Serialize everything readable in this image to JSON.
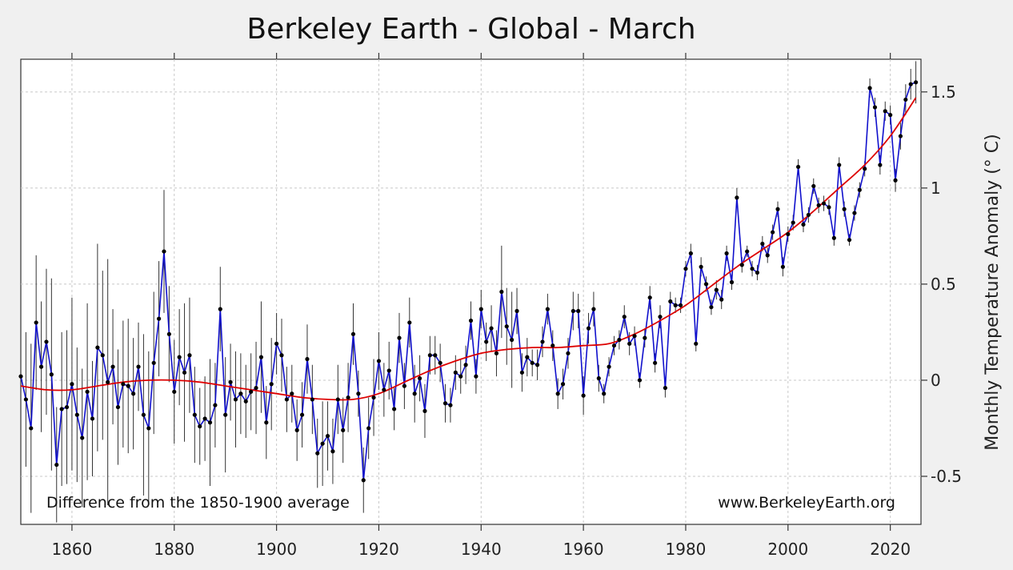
{
  "chart_data": {
    "type": "line",
    "title": "Berkeley Earth - Global - March",
    "ylabel": "Monthly Temperature Anomaly (° C)",
    "xlabel": "",
    "annotation_left": "Difference from the 1850-1900 average",
    "annotation_right": "www.BerkeleyEarth.org",
    "xlim": [
      1850,
      2026
    ],
    "ylim": [
      -0.75,
      1.67
    ],
    "x_ticks": [
      1860,
      1880,
      1900,
      1920,
      1940,
      1960,
      1980,
      2000,
      2020
    ],
    "x_tick_labels": [
      "1860",
      "1880",
      "1900",
      "1920",
      "1940",
      "1960",
      "1980",
      "2000",
      "2020"
    ],
    "y_ticks": [
      -0.5,
      0,
      0.5,
      1,
      1.5
    ],
    "y_tick_labels": [
      "-0.5",
      "0",
      "0.5",
      "1",
      "1.5"
    ],
    "grid": true,
    "colors": {
      "series": "#1010cc",
      "points": "#000000",
      "trend": "#dd0000",
      "errorbars": "#333333"
    },
    "series": [
      {
        "x_start": 1850,
        "x_end": 2025,
        "values": [
          0.02,
          -0.1,
          -0.25,
          0.3,
          0.07,
          0.2,
          0.03,
          -0.44,
          -0.15,
          -0.14,
          -0.02,
          -0.18,
          -0.3,
          -0.06,
          -0.2,
          0.17,
          0.13,
          -0.01,
          0.07,
          -0.14,
          -0.02,
          -0.03,
          -0.07,
          0.07,
          -0.18,
          -0.25,
          0.09,
          0.32,
          0.67,
          0.24,
          -0.06,
          0.12,
          0.04,
          0.13,
          -0.18,
          -0.24,
          -0.2,
          -0.22,
          -0.13,
          0.37,
          -0.18,
          -0.01,
          -0.1,
          -0.07,
          -0.11,
          -0.06,
          -0.04,
          0.12,
          -0.22,
          -0.02,
          0.19,
          0.13,
          -0.1,
          -0.07,
          -0.26,
          -0.18,
          0.11,
          -0.1,
          -0.38,
          -0.33,
          -0.29,
          -0.37,
          -0.1,
          -0.26,
          -0.09,
          0.24,
          -0.07,
          -0.52,
          -0.25,
          -0.09,
          0.1,
          -0.05,
          0.05,
          -0.15,
          0.22,
          -0.03,
          0.3,
          -0.07,
          0.01,
          -0.16,
          0.13,
          0.13,
          0.09,
          -0.12,
          -0.13,
          0.04,
          0.02,
          0.08,
          0.31,
          0.02,
          0.37,
          0.2,
          0.27,
          0.14,
          0.46,
          0.28,
          0.21,
          0.36,
          0.04,
          0.12,
          0.09,
          0.08,
          0.2,
          0.37,
          0.18,
          -0.07,
          -0.02,
          0.14,
          0.36,
          0.36,
          -0.08,
          0.27,
          0.37,
          0.01,
          -0.07,
          0.07,
          0.18,
          0.21,
          0.33,
          0.19,
          0.23,
          0.0,
          0.22,
          0.43,
          0.09,
          0.33,
          -0.04,
          0.41,
          0.39,
          0.39,
          0.58,
          0.66,
          0.19,
          0.59,
          0.5,
          0.38,
          0.47,
          0.42,
          0.66,
          0.51,
          0.95,
          0.6,
          0.67,
          0.58,
          0.56,
          0.71,
          0.65,
          0.77,
          0.89,
          0.59,
          0.76,
          0.82,
          1.11,
          0.81,
          0.86,
          1.01,
          0.91,
          0.92,
          0.9,
          0.74,
          1.12,
          0.89,
          0.73,
          0.87,
          0.99,
          1.1,
          1.52,
          1.42,
          1.12,
          1.4,
          1.38,
          1.04,
          1.27,
          1.46,
          1.54,
          1.55
        ],
        "uncertainty": [
          0.3,
          0.35,
          0.44,
          0.35,
          0.34,
          0.38,
          0.5,
          0.3,
          0.4,
          0.4,
          0.45,
          0.35,
          0.36,
          0.46,
          0.3,
          0.54,
          0.44,
          0.64,
          0.3,
          0.3,
          0.33,
          0.35,
          0.29,
          0.23,
          0.42,
          0.4,
          0.37,
          0.3,
          0.32,
          0.25,
          0.27,
          0.25,
          0.36,
          0.3,
          0.25,
          0.2,
          0.22,
          0.33,
          0.22,
          0.22,
          0.3,
          0.2,
          0.25,
          0.21,
          0.19,
          0.2,
          0.24,
          0.29,
          0.19,
          0.24,
          0.16,
          0.19,
          0.17,
          0.15,
          0.16,
          0.17,
          0.18,
          0.18,
          0.18,
          0.22,
          0.18,
          0.17,
          0.18,
          0.17,
          0.18,
          0.16,
          0.12,
          0.17,
          0.16,
          0.2,
          0.15,
          0.14,
          0.15,
          0.11,
          0.13,
          0.12,
          0.13,
          0.15,
          0.12,
          0.14,
          0.1,
          0.1,
          0.1,
          0.1,
          0.09,
          0.09,
          0.09,
          0.1,
          0.1,
          0.09,
          0.1,
          0.1,
          0.12,
          0.12,
          0.24,
          0.2,
          0.25,
          0.12,
          0.1,
          0.1,
          0.07,
          0.08,
          0.08,
          0.08,
          0.08,
          0.08,
          0.08,
          0.08,
          0.1,
          0.09,
          0.1,
          0.08,
          0.09,
          0.07,
          0.05,
          0.05,
          0.05,
          0.05,
          0.06,
          0.06,
          0.05,
          0.04,
          0.05,
          0.06,
          0.05,
          0.06,
          0.05,
          0.05,
          0.04,
          0.04,
          0.04,
          0.05,
          0.04,
          0.05,
          0.04,
          0.04,
          0.05,
          0.05,
          0.04,
          0.04,
          0.05,
          0.04,
          0.03,
          0.04,
          0.04,
          0.04,
          0.04,
          0.04,
          0.04,
          0.05,
          0.04,
          0.04,
          0.04,
          0.04,
          0.04,
          0.04,
          0.04,
          0.04,
          0.04,
          0.04,
          0.04,
          0.04,
          0.03,
          0.04,
          0.04,
          0.04,
          0.05,
          0.05,
          0.05,
          0.05,
          0.05,
          0.06,
          0.07,
          0.08,
          0.08,
          0.11
        ]
      },
      {
        "type": "smoothed-trend",
        "x": [
          1850,
          1855,
          1860,
          1865,
          1870,
          1875,
          1880,
          1885,
          1890,
          1895,
          1900,
          1905,
          1910,
          1915,
          1920,
          1925,
          1930,
          1935,
          1940,
          1945,
          1950,
          1955,
          1960,
          1965,
          1970,
          1975,
          1980,
          1985,
          1990,
          1995,
          2000,
          2005,
          2010,
          2015,
          2020,
          2025
        ],
        "values": [
          -0.03,
          -0.05,
          -0.05,
          -0.03,
          -0.01,
          0.0,
          0.0,
          -0.01,
          -0.03,
          -0.05,
          -0.07,
          -0.09,
          -0.1,
          -0.1,
          -0.07,
          -0.01,
          0.05,
          0.1,
          0.14,
          0.16,
          0.17,
          0.17,
          0.18,
          0.19,
          0.24,
          0.31,
          0.39,
          0.49,
          0.59,
          0.68,
          0.77,
          0.88,
          1.0,
          1.12,
          1.27,
          1.47
        ]
      }
    ]
  }
}
